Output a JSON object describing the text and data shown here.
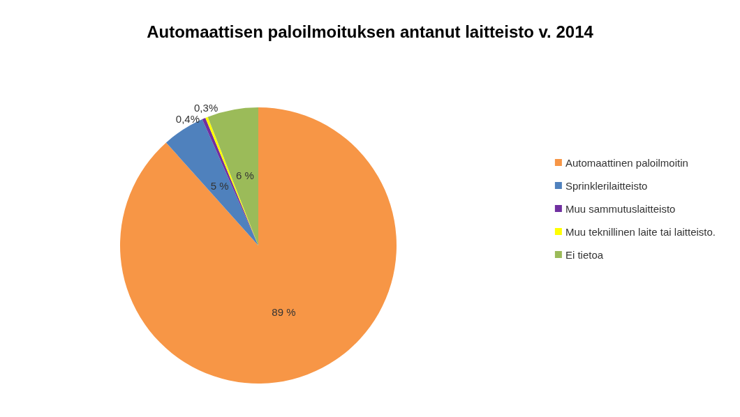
{
  "chart_data": {
    "type": "pie",
    "title": "Automaattisen paloilmoituksen antanut laitteisto v. 2014",
    "categories": [
      "Automaattinen paloilmoitin",
      "Sprinklerilaitteisto",
      "Muu sammutuslaitteisto",
      "Muu teknillinen laite tai laitteisto.",
      "Ei tietoa"
    ],
    "values": [
      89,
      5,
      0.4,
      0.3,
      6
    ],
    "colors": [
      "#f79646",
      "#4f81bd",
      "#7030a0",
      "#ffff00",
      "#9bbb59"
    ],
    "value_labels": [
      "89 %",
      "5 %",
      "0,4%",
      "0,3%",
      "6 %"
    ],
    "legend": "right"
  }
}
